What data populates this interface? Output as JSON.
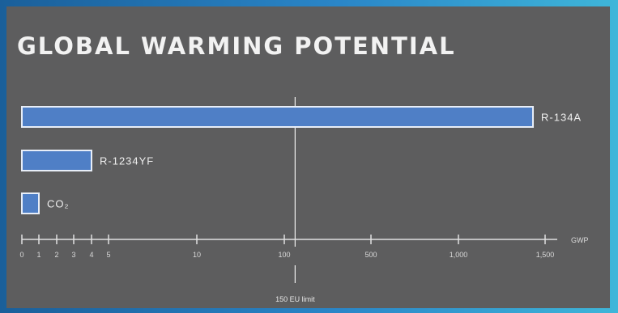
{
  "chart_data": {
    "type": "bar",
    "orientation": "horizontal",
    "title": "GLOBAL WARMING POTENTIAL",
    "xlabel": "GWP",
    "categories": [
      "R-134A",
      "R-1234YF",
      "CO2"
    ],
    "category_display": [
      "R-134A",
      "R-1234YF",
      "CO₂"
    ],
    "values": [
      1430,
      4,
      1
    ],
    "x_ticks": [
      0,
      1,
      2,
      3,
      4,
      5,
      10,
      100,
      500,
      1000,
      1500
    ],
    "x_tick_labels": [
      "0",
      "1",
      "2",
      "3",
      "4",
      "5",
      "10",
      "100",
      "500",
      "1,000",
      "1,500"
    ],
    "xlim": [
      0,
      1500
    ],
    "reference_line": {
      "value": 150,
      "label": "150 EU limit"
    },
    "colors": {
      "bar": "#4f7fc6",
      "bar_outline": "#e8eef8",
      "axis": "#e0e0e0",
      "background": "#5d5d5e"
    }
  }
}
